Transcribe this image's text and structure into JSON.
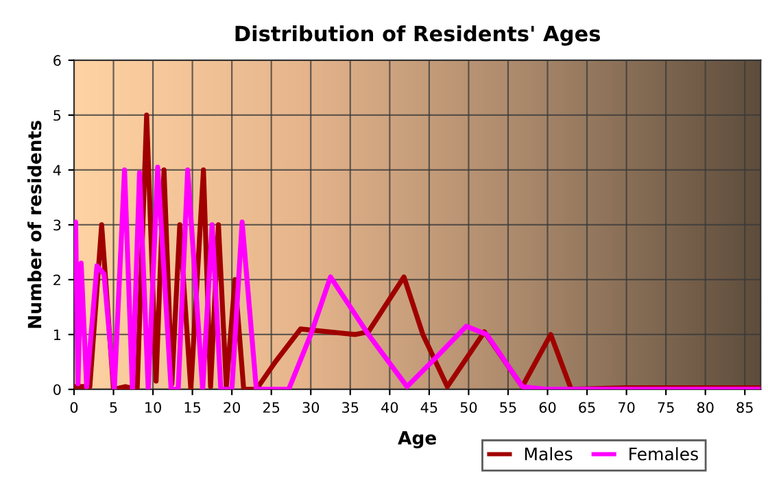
{
  "chart_data": {
    "type": "line",
    "title": "Distribution of Residents' Ages",
    "xlabel": "Age",
    "ylabel": "Number of residents",
    "xlim": [
      0,
      87
    ],
    "ylim": [
      0,
      6
    ],
    "xticks": [
      0,
      5,
      10,
      15,
      20,
      25,
      30,
      35,
      40,
      45,
      50,
      55,
      60,
      65,
      70,
      75,
      80,
      85
    ],
    "yticks": [
      0,
      1,
      2,
      3,
      4,
      5,
      6
    ],
    "grid": true,
    "legend": "bottom right",
    "line_style": "solid",
    "series": [
      {
        "name": "Males",
        "color": "#a00000",
        "x": [
          0,
          1,
          2,
          3.5,
          5,
          6.5,
          8,
          9.2,
          10.4,
          11.4,
          12.4,
          13.4,
          14.8,
          16.4,
          17.3,
          18.3,
          19.3,
          20.4,
          21.5,
          23.1,
          25.5,
          28.7,
          32.1,
          35.6,
          37.3,
          41.8,
          44.2,
          47.3,
          52,
          56.8,
          60.4,
          63,
          70,
          80,
          87
        ],
        "values": [
          0.05,
          0.05,
          0.05,
          3,
          0,
          0.05,
          0,
          5,
          0.15,
          4,
          0.1,
          3,
          0,
          4,
          0.05,
          3,
          0.05,
          2,
          0,
          0,
          0.5,
          1.1,
          1.05,
          1,
          1.05,
          2.05,
          1,
          0.05,
          1.05,
          0.05,
          1,
          0,
          0.03,
          0.03,
          0.03
        ]
      },
      {
        "name": "Females",
        "color": "#ff00ff",
        "x": [
          0.2,
          0.5,
          0.9,
          1.6,
          2.9,
          3.8,
          5.1,
          6.4,
          7.4,
          8.3,
          9.4,
          10.6,
          12.3,
          13.2,
          14.4,
          16.3,
          17.5,
          18.6,
          20,
          21.3,
          23.1,
          27.2,
          30,
          32.5,
          37.3,
          42.2,
          46,
          49.7,
          52.3,
          56.8,
          60,
          87
        ],
        "values": [
          3.05,
          0.1,
          2.3,
          0.05,
          2.25,
          2.1,
          0,
          4,
          0,
          3.95,
          0,
          4.05,
          0,
          0,
          4,
          0,
          3,
          0,
          0,
          3.05,
          0,
          0,
          1,
          2.05,
          1,
          0.05,
          0.6,
          1.15,
          1,
          0.05,
          0,
          0
        ]
      }
    ]
  }
}
